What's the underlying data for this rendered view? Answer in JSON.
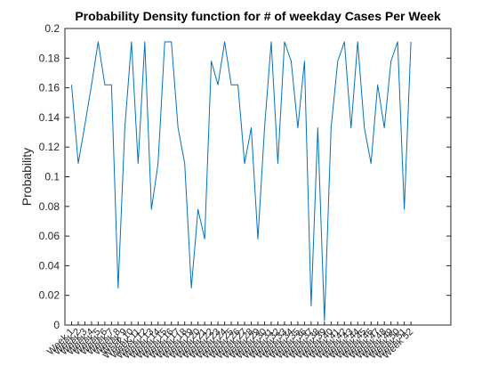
{
  "chart_data": {
    "type": "line",
    "title": "Probability Density function for # of weekday Cases Per Week",
    "xlabel": "",
    "ylabel": "Probability",
    "ylim": [
      0,
      0.2
    ],
    "xlim": [
      0,
      58
    ],
    "yticks": [
      0,
      0.02,
      0.04,
      0.06,
      0.08,
      0.1,
      0.12,
      0.14,
      0.16,
      0.18,
      0.2
    ],
    "ytick_labels": [
      "0",
      "0.02",
      "0.04",
      "0.06",
      "0.08",
      "0.1",
      "0.12",
      "0.14",
      "0.16",
      "0.18",
      "0.2"
    ],
    "categories": [
      "Week 1",
      "Week 2",
      "Week 3",
      "Week 4",
      "Week 5",
      "Week 6",
      "Week 7",
      "Week 8",
      "Week 9",
      "Week 10",
      "Week 11",
      "Week 12",
      "Week 13",
      "Week 14",
      "Week 15",
      "Week 16",
      "Week 17",
      "Week 18",
      "Week 19",
      "Week 20",
      "Week 21",
      "Week 22",
      "Week 23",
      "Week 24",
      "Week 25",
      "Week 26",
      "Week 27",
      "Week 28",
      "Week 29",
      "Week 30",
      "Week 31",
      "Week 32",
      "Week 33",
      "Week 34",
      "Week 35",
      "Week 36",
      "Week 37",
      "Week 38",
      "Week 39",
      "Week 40",
      "Week 41",
      "Week 42",
      "Week 43",
      "Week 44",
      "Week 45",
      "Week 46",
      "Week 47",
      "Week 48",
      "Week 49",
      "Week 50",
      "Week 51",
      "Week 52"
    ],
    "series": [
      {
        "color": "#0072BD",
        "values": [
          0.162,
          0.109,
          0.135,
          0.162,
          0.191,
          0.162,
          0.162,
          0.025,
          0.133,
          0.191,
          0.109,
          0.191,
          0.078,
          0.109,
          0.191,
          0.191,
          0.133,
          0.109,
          0.025,
          0.078,
          0.058,
          0.178,
          0.162,
          0.191,
          0.162,
          0.162,
          0.109,
          0.133,
          0.058,
          0.133,
          0.191,
          0.109,
          0.191,
          0.178,
          0.133,
          0.178,
          0.013,
          0.133,
          0.003,
          0.133,
          0.178,
          0.191,
          0.133,
          0.191,
          0.133,
          0.109,
          0.162,
          0.133,
          0.178,
          0.191,
          0.078,
          0.191
        ]
      }
    ],
    "grid": false,
    "legend": "none"
  }
}
